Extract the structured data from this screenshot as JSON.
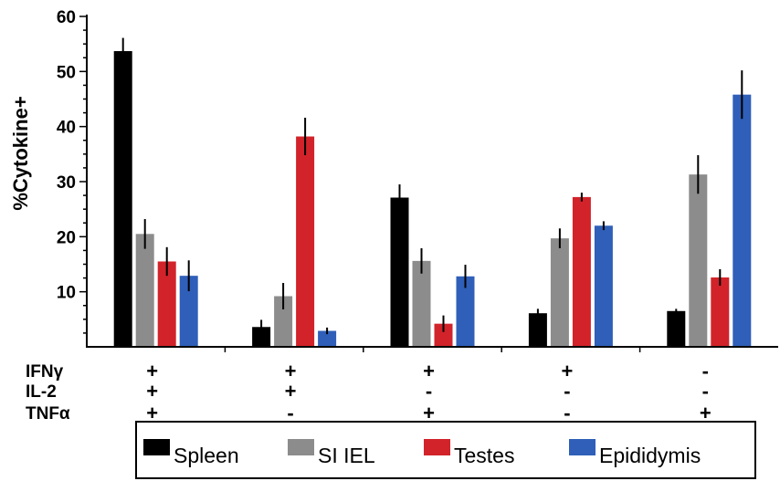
{
  "chart_data": {
    "type": "bar",
    "title": "",
    "xlabel": "",
    "ylabel": "%Cytokine+",
    "ylim": [
      0,
      60
    ],
    "yticks": [
      10,
      20,
      30,
      40,
      50,
      60
    ],
    "grid": false,
    "legend_position": "bottom",
    "categories": [
      "IFNγ+ IL-2+ TNFα+",
      "IFNγ+ IL-2+ TNFα-",
      "IFNγ+ IL-2- TNFα+",
      "IFNγ+ IL-2- TNFα-",
      "IFNγ- IL-2- TNFα+"
    ],
    "row_labels": [
      "IFNγ",
      "IL-2",
      "TNFα"
    ],
    "signs": [
      [
        "+",
        "+",
        "+",
        "+",
        "-"
      ],
      [
        "+",
        "+",
        "-",
        "-",
        "-"
      ],
      [
        "+",
        "-",
        "+",
        "-",
        "+"
      ]
    ],
    "series": [
      {
        "name": "Spleen",
        "color": "#000000",
        "values": [
          53.7,
          3.6,
          27.1,
          6.1,
          6.5
        ],
        "errors": [
          2.4,
          1.3,
          2.4,
          0.8,
          0.4
        ]
      },
      {
        "name": "SI IEL",
        "color": "#8c8c8c",
        "values": [
          20.5,
          9.2,
          15.6,
          19.7,
          31.3
        ],
        "errors": [
          2.7,
          2.4,
          2.3,
          1.8,
          3.5
        ]
      },
      {
        "name": "Testes",
        "color": "#d2232a",
        "values": [
          15.5,
          38.2,
          4.2,
          27.2,
          12.6
        ],
        "errors": [
          2.6,
          3.4,
          1.5,
          0.8,
          1.5
        ]
      },
      {
        "name": "Epididymis",
        "color": "#2f5fb8",
        "values": [
          12.9,
          2.9,
          12.8,
          22.0,
          45.8
        ],
        "errors": [
          2.8,
          0.6,
          2.1,
          0.8,
          4.4
        ]
      }
    ]
  }
}
